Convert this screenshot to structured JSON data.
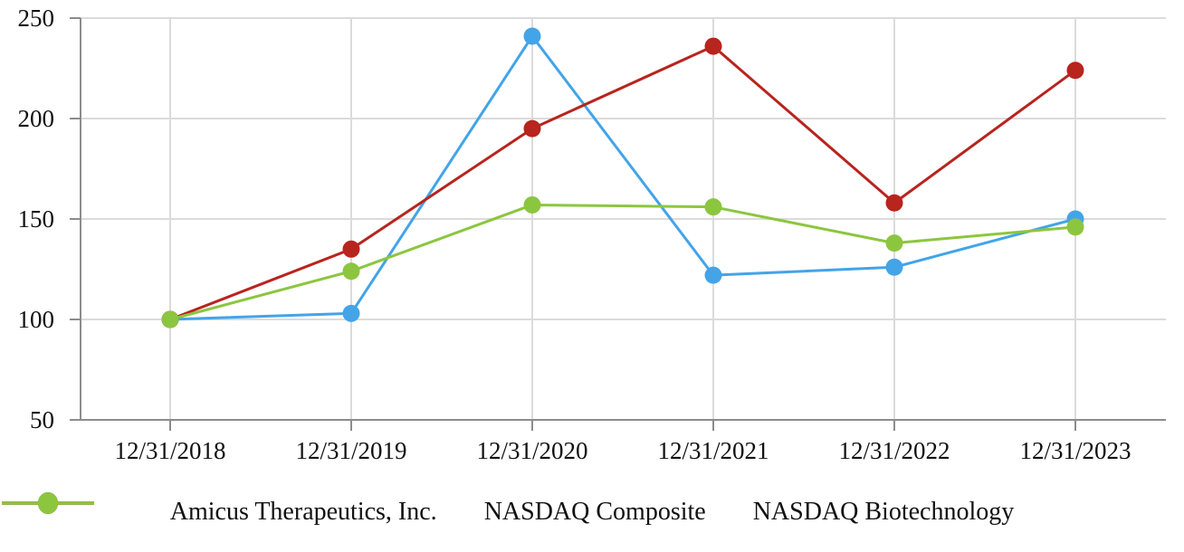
{
  "chart_data": {
    "type": "line",
    "title": "",
    "xlabel": "",
    "ylabel": "",
    "x_labels": [
      "12/31/2018",
      "12/31/2019",
      "12/31/2020",
      "12/31/2021",
      "12/31/2022",
      "12/31/2023"
    ],
    "series": [
      {
        "name": "Amicus Therapeutics, Inc.",
        "color": "#43A4E8",
        "values": [
          100,
          103,
          241,
          122,
          126,
          150
        ]
      },
      {
        "name": "NASDAQ Composite",
        "color": "#B8241E",
        "values": [
          100,
          135,
          195,
          236,
          158,
          224
        ]
      },
      {
        "name": "NASDAQ Biotechnology",
        "color": "#8CC63F",
        "values": [
          100,
          124,
          157,
          156,
          138,
          146
        ]
      }
    ],
    "yticks": [
      50,
      100,
      150,
      200,
      250
    ],
    "ylim": [
      50,
      250
    ],
    "grid": true,
    "legend_position": "bottom"
  },
  "colors": {
    "background": "#FFFFFF",
    "gridline": "#DBDBDB",
    "axis": "#8C8C8C",
    "text": "#111111"
  }
}
